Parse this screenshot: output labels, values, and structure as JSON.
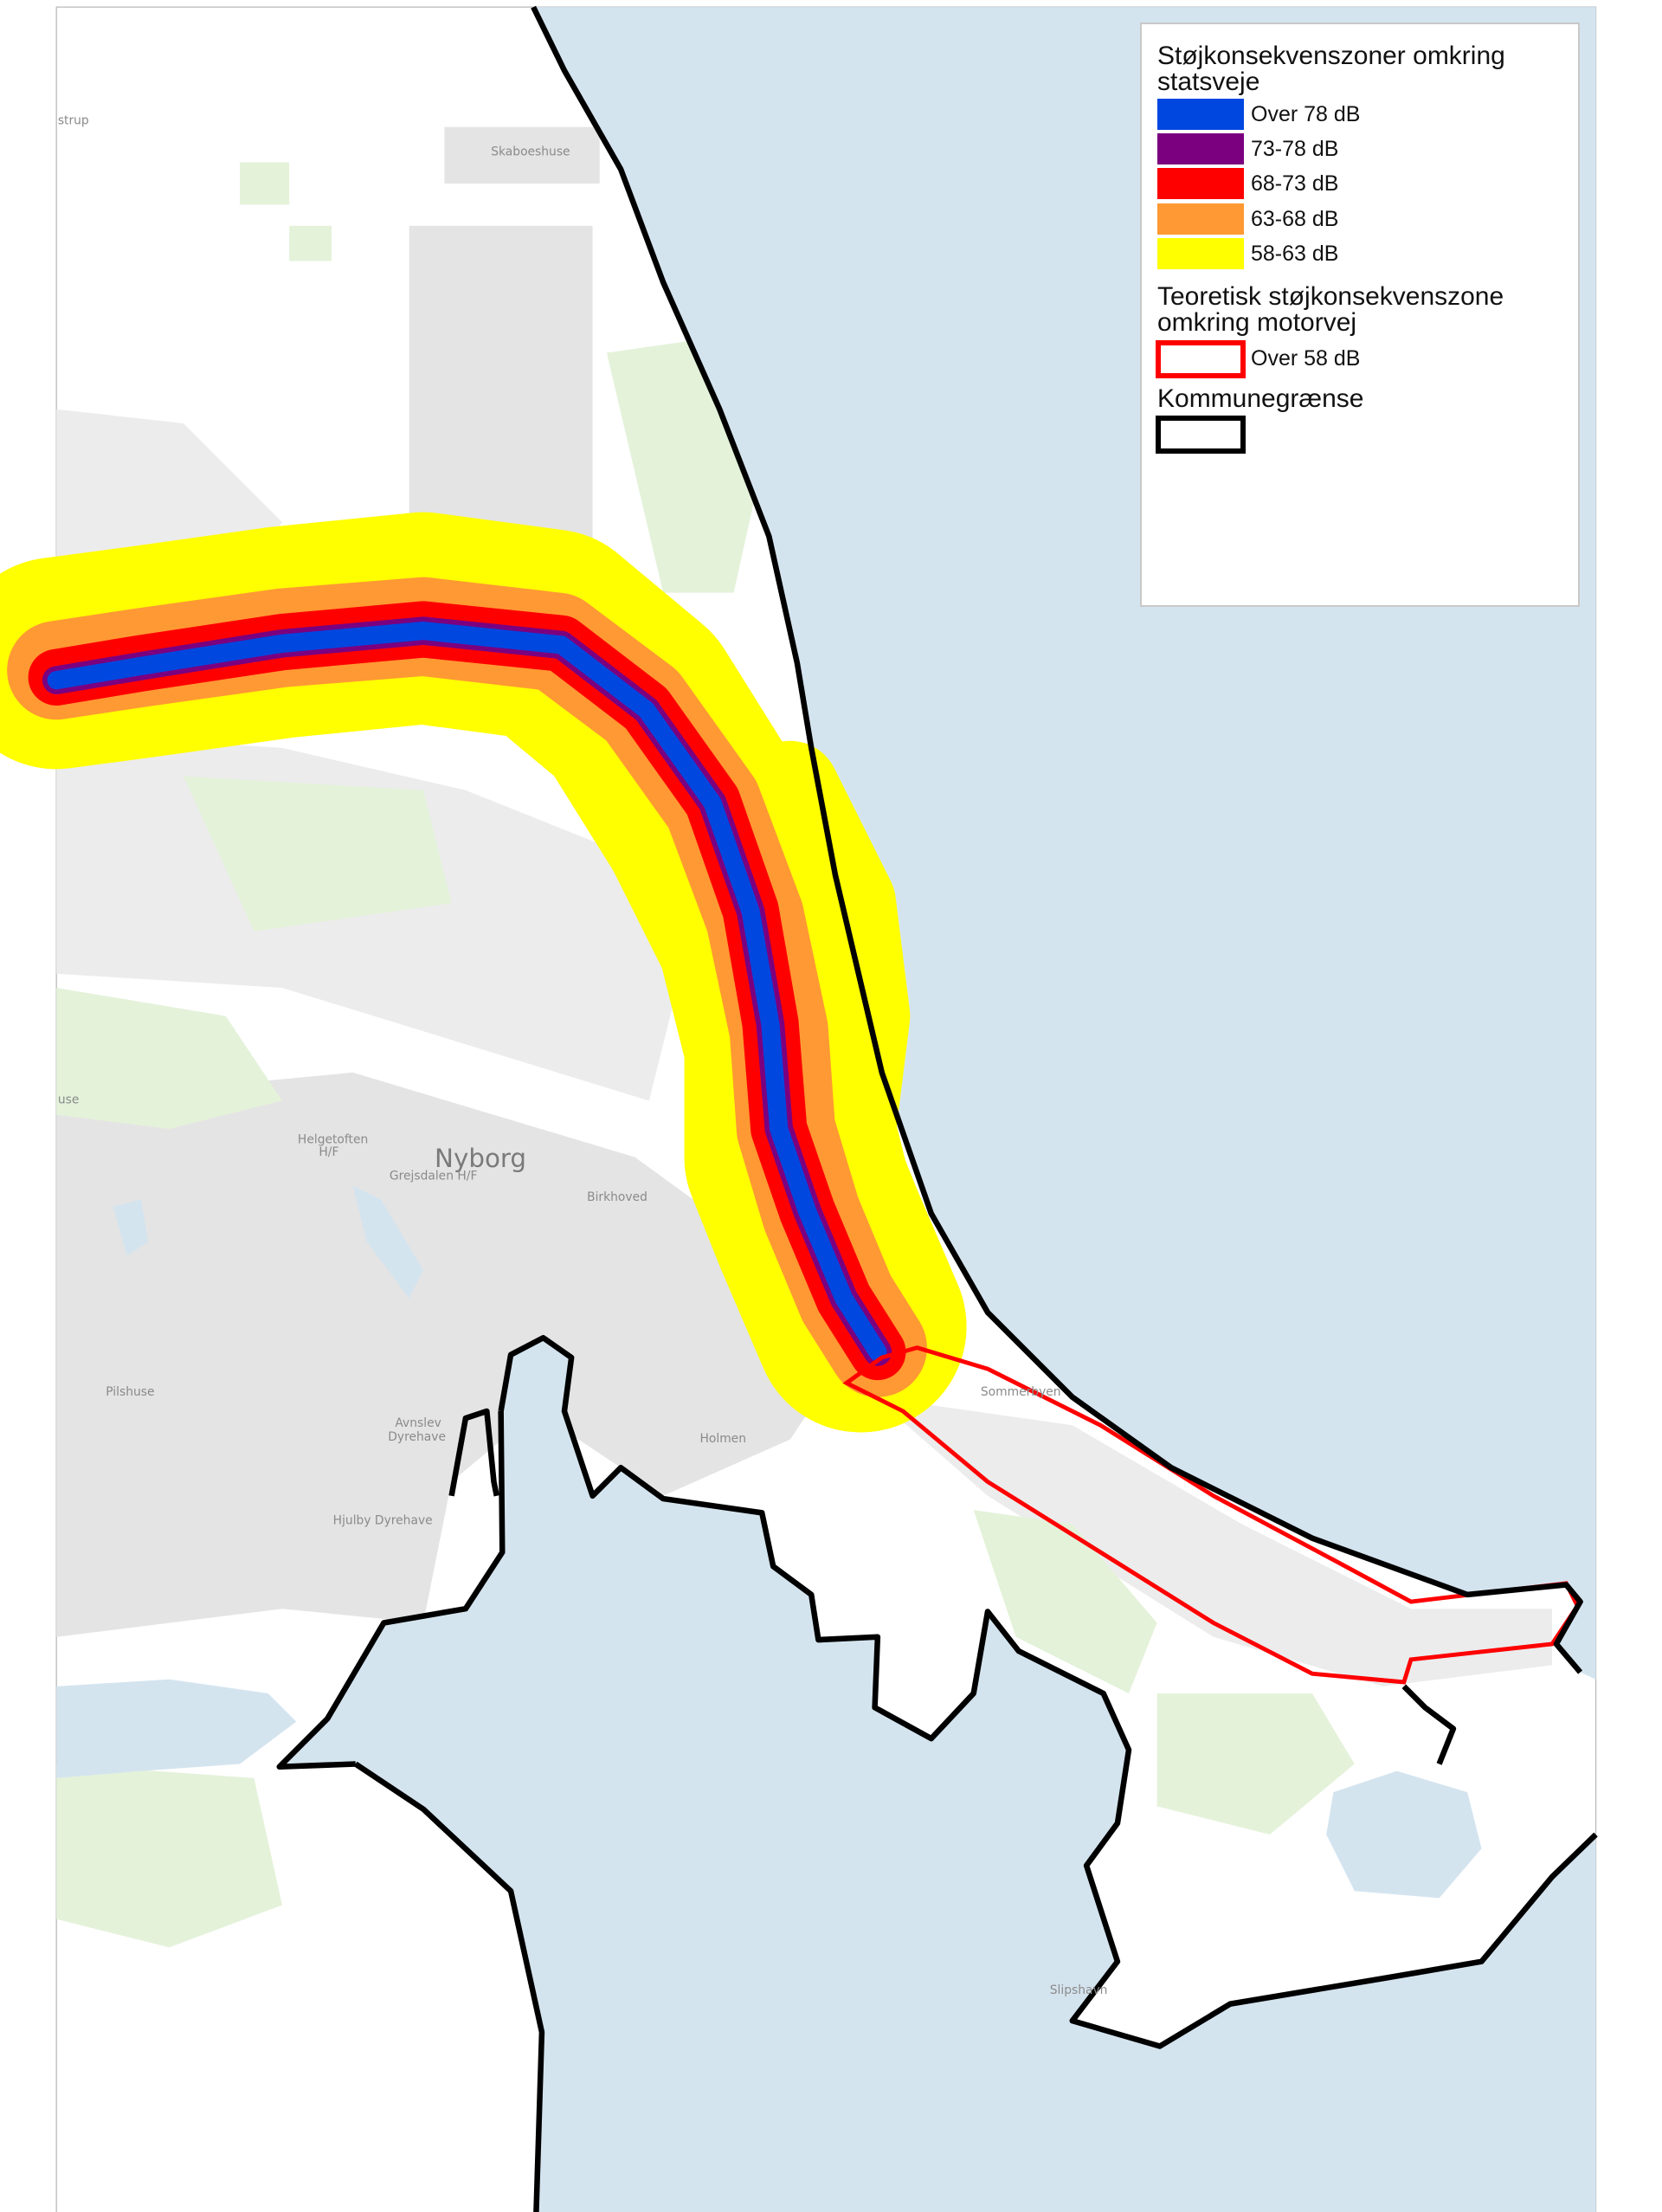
{
  "legend": {
    "section1_title_line1": "Støjkonsekvenszoner omkring",
    "section1_title_line2": "statsveje",
    "noise_classes": [
      {
        "label": "Over 78 dB",
        "color": "#0047e0"
      },
      {
        "label": "73-78 dB",
        "color": "#7b0080"
      },
      {
        "label": "68-73 dB",
        "color": "#ff0000"
      },
      {
        "label": "63-68 dB",
        "color": "#ff9933"
      },
      {
        "label": "58-63 dB",
        "color": "#ffff00"
      }
    ],
    "section2_title_line1": "Teoretisk støjkonsekvenszone",
    "section2_title_line2": "omkring motorvej",
    "motorway_zone": {
      "label": "Over 58 dB",
      "color": "#ff0000"
    },
    "section3_title": "Kommunegrænse",
    "boundary_color": "#000000"
  },
  "places": {
    "strup": "strup",
    "skaboeshuse": "Skaboeshuse",
    "use": "use",
    "helgetoften_1": "Helgetoften",
    "helgetoften_2": "H/F",
    "nyborg": "Nyborg",
    "grejsdalen": "Grejsdalen H/F",
    "birkhoved": "Birkhoved",
    "pilshuse": "Pilshuse",
    "avnslev_1": "Avnslev",
    "avnslev_2": "Dyrehave",
    "holmen": "Holmen",
    "hjulby": "Hjulby Dyrehave",
    "sommerbyen": "Sommerbyen",
    "slipshavn": "Slipshavn"
  },
  "colors": {
    "water": "#d4e4ef",
    "urban": "#e4e4e4",
    "green": "#e4f2da",
    "land": "#ffffff"
  }
}
